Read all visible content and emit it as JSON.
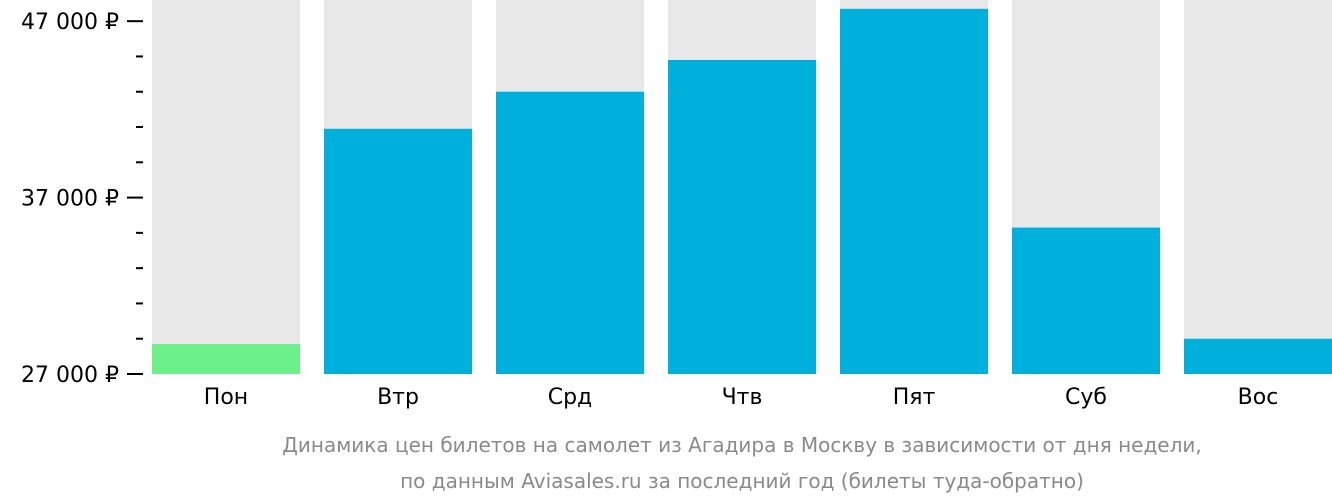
{
  "chart_data": {
    "type": "bar",
    "categories": [
      "Пон",
      "Втр",
      "Срд",
      "Чтв",
      "Пят",
      "Суб",
      "Вос"
    ],
    "values": [
      28700,
      40900,
      43000,
      44800,
      47700,
      35300,
      29000
    ],
    "ylim": [
      27000,
      48200
    ],
    "y_ticks": [
      {
        "value": 47000,
        "label": "47 000 ₽"
      },
      {
        "value": 37000,
        "label": "37 000 ₽"
      },
      {
        "value": 27000,
        "label": "27 000 ₽"
      }
    ],
    "y_minor_ticks": [
      29000,
      31000,
      33000,
      35000,
      39000,
      41000,
      43000,
      45000
    ],
    "highlight_index": 0,
    "colors": {
      "bar": "#00b0dc",
      "highlight": "#6cf18a",
      "background_column": "#e8e8e8",
      "axis": "#000000",
      "caption": "#8a8a8a"
    },
    "caption_lines": [
      "Динамика цен билетов на самолет из Агадира в Москву в зависимости от дня недели,",
      "по данным Aviasales.ru за последний год (билеты туда-обратно)"
    ],
    "grid": false,
    "legend": "none"
  }
}
